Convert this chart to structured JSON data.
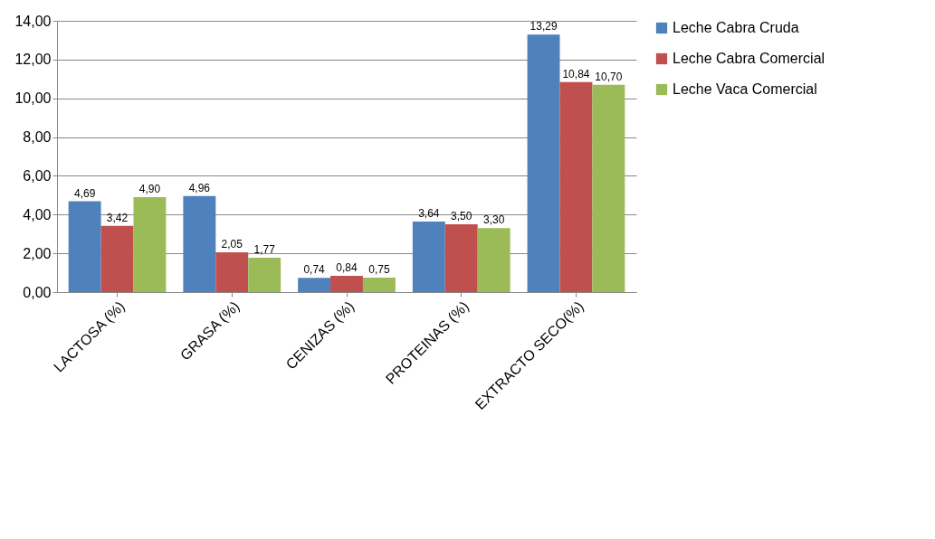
{
  "chart_data": {
    "type": "bar",
    "categories": [
      "LACTOSA (%)",
      "GRASA (%)",
      "CENIZAS (%)",
      "PROTEINAS (%)",
      "EXTRACTO SECO(%)"
    ],
    "series": [
      {
        "name": "Leche Cabra Cruda",
        "color": "#4f81bd",
        "values": [
          4.69,
          4.96,
          0.74,
          3.64,
          13.29
        ],
        "value_labels": [
          "4,69",
          "4,96",
          "0,74",
          "3,64",
          "13,29"
        ]
      },
      {
        "name": "Leche Cabra Comercial",
        "color": "#c0504d",
        "values": [
          3.42,
          2.05,
          0.84,
          3.5,
          10.84
        ],
        "value_labels": [
          "3,42",
          "2,05",
          "0,84",
          "3,50",
          "10,84"
        ]
      },
      {
        "name": "Leche Vaca Comercial",
        "color": "#9bbb59",
        "values": [
          4.9,
          1.77,
          0.75,
          3.3,
          10.7
        ],
        "value_labels": [
          "4,90",
          "1,77",
          "0,75",
          "3,30",
          "10,70"
        ]
      }
    ],
    "ylim": [
      0,
      14
    ],
    "yticks": [
      {
        "value": 0,
        "label": "0,00"
      },
      {
        "value": 2,
        "label": "2,00"
      },
      {
        "value": 4,
        "label": "4,00"
      },
      {
        "value": 6,
        "label": "6,00"
      },
      {
        "value": 8,
        "label": "8,00"
      },
      {
        "value": 10,
        "label": "10,00"
      },
      {
        "value": 12,
        "label": "12,00"
      },
      {
        "value": 14,
        "label": "14,00"
      }
    ],
    "grid": "y",
    "legend": "right"
  }
}
